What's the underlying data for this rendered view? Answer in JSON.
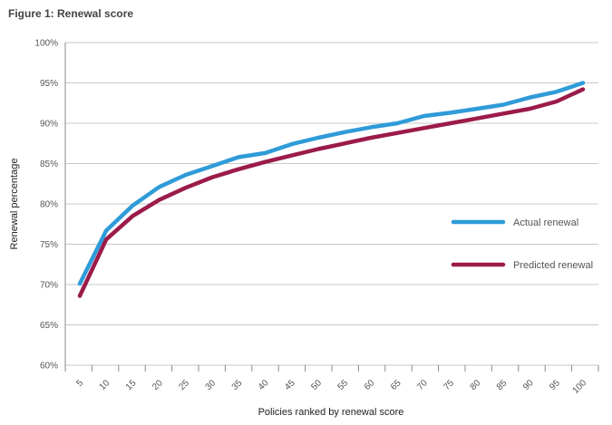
{
  "figure_title": "Figure 1: Renewal score",
  "colors": {
    "actual": "#2f9bd8",
    "predicted": "#9b1b4a",
    "grid": "#c8c8c8",
    "axis": "#888888"
  },
  "chart_data": {
    "type": "line",
    "title": "Figure 1: Renewal score",
    "xlabel": "Policies ranked by renewal score",
    "ylabel": "Renewal percentage",
    "x": [
      5,
      10,
      15,
      20,
      25,
      30,
      35,
      40,
      45,
      50,
      55,
      60,
      65,
      70,
      75,
      80,
      85,
      90,
      95,
      100
    ],
    "x_tick_labels": [
      "5",
      "10",
      "15",
      "20",
      "25",
      "30",
      "35",
      "40",
      "45",
      "50",
      "55",
      "60",
      "65",
      "70",
      "75",
      "80",
      "85",
      "90",
      "95",
      "100"
    ],
    "ylim": [
      60,
      100
    ],
    "y_ticks": [
      60,
      65,
      70,
      75,
      80,
      85,
      90,
      95,
      100
    ],
    "y_tick_labels": [
      "60%",
      "65%",
      "70%",
      "75%",
      "80%",
      "85%",
      "90%",
      "95%",
      "100%"
    ],
    "grid": true,
    "legend_position": "right",
    "series": [
      {
        "name": "Actual renewal",
        "color": "#2f9bd8",
        "values": [
          70.1,
          76.7,
          79.8,
          82.1,
          83.6,
          84.7,
          85.8,
          86.3,
          87.4,
          88.2,
          88.9,
          89.5,
          90.0,
          90.9,
          91.3,
          91.8,
          92.3,
          93.2,
          93.9,
          95.0
        ]
      },
      {
        "name": "Predicted renewal",
        "color": "#9b1b4a",
        "values": [
          68.6,
          75.6,
          78.5,
          80.5,
          82.0,
          83.3,
          84.3,
          85.2,
          86.0,
          86.8,
          87.5,
          88.2,
          88.8,
          89.4,
          90.0,
          90.6,
          91.2,
          91.8,
          92.7,
          94.2
        ]
      }
    ]
  }
}
